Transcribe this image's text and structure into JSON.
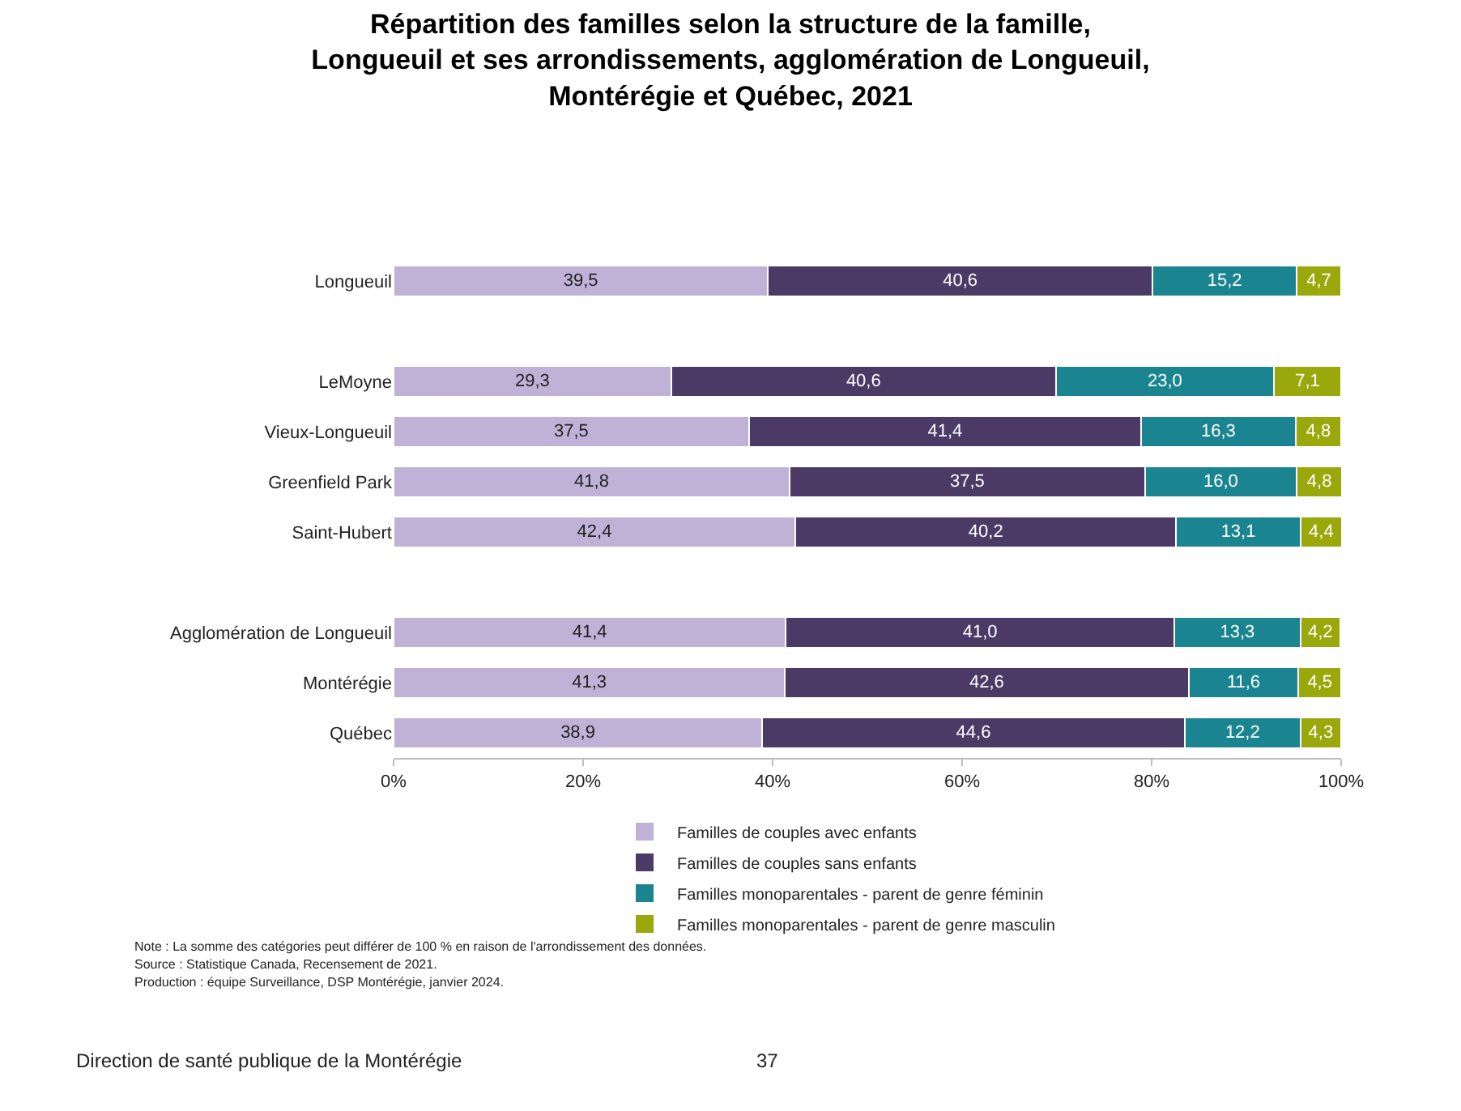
{
  "chart_data": {
    "type": "bar",
    "orientation": "horizontal",
    "stacked": true,
    "title": "Répartition des familles selon la structure de la famille,\nLongueuil et ses arrondissements, agglomération de Longueuil,\nMontérégie et Québec, 2021",
    "categories": [
      "Longueuil",
      null,
      "LeMoyne",
      "Vieux-Longueuil",
      "Greenfield Park",
      "Saint-Hubert",
      null,
      "Agglomération de Longueuil",
      "Montérégie",
      "Québec"
    ],
    "series": [
      {
        "name": "Familles de couples avec enfants",
        "color": "#c0b2d6",
        "values": [
          39.5,
          null,
          29.3,
          37.5,
          41.8,
          42.4,
          null,
          41.4,
          41.3,
          38.9
        ],
        "value_labels": [
          "39,5",
          null,
          "29,3",
          "37,5",
          "41,8",
          "42,4",
          null,
          "41,4",
          "41,3",
          "38,9"
        ]
      },
      {
        "name": "Familles de couples sans enfants",
        "color": "#4b3a66",
        "values": [
          40.6,
          null,
          40.6,
          41.4,
          37.5,
          40.2,
          null,
          41.0,
          42.6,
          44.6
        ],
        "value_labels": [
          "40,6",
          null,
          "40,6",
          "41,4",
          "37,5",
          "40,2",
          null,
          "41,0",
          "42,6",
          "44,6"
        ]
      },
      {
        "name": "Familles monoparentales - parent de genre féminin",
        "color": "#1a8590",
        "values": [
          15.2,
          null,
          23.0,
          16.3,
          16.0,
          13.1,
          null,
          13.3,
          11.6,
          12.2
        ],
        "value_labels": [
          "15,2",
          null,
          "23,0",
          "16,3",
          "16,0",
          "13,1",
          null,
          "13,3",
          "11,6",
          "12,2"
        ]
      },
      {
        "name": "Familles monoparentales - parent de genre masculin",
        "color": "#9aa80c",
        "values": [
          4.7,
          null,
          7.1,
          4.8,
          4.8,
          4.4,
          null,
          4.2,
          4.5,
          4.3
        ],
        "value_labels": [
          "4,7",
          null,
          "7,1",
          "4,8",
          "4,8",
          "4,4",
          null,
          "4,2",
          "4,5",
          "4,3"
        ]
      }
    ],
    "xlim": [
      0,
      100
    ],
    "xticks": [
      {
        "value": 0,
        "label": "0%"
      },
      {
        "value": 20,
        "label": "20%"
      },
      {
        "value": 40,
        "label": "40%"
      },
      {
        "value": 60,
        "label": "60%"
      },
      {
        "value": 80,
        "label": "80%"
      },
      {
        "value": 100,
        "label": "100%"
      }
    ],
    "legend": "bottom",
    "annotations": [
      "Note : La somme des catégories peut différer de 100 % en raison de l'arrondissement des données.",
      "Source : Statistique Canada, Recensement de 2021.",
      "Production : équipe Surveillance, DSP Montérégie, janvier 2024.",
      "Direction de santé publique de la Montérégie",
      "37"
    ]
  }
}
